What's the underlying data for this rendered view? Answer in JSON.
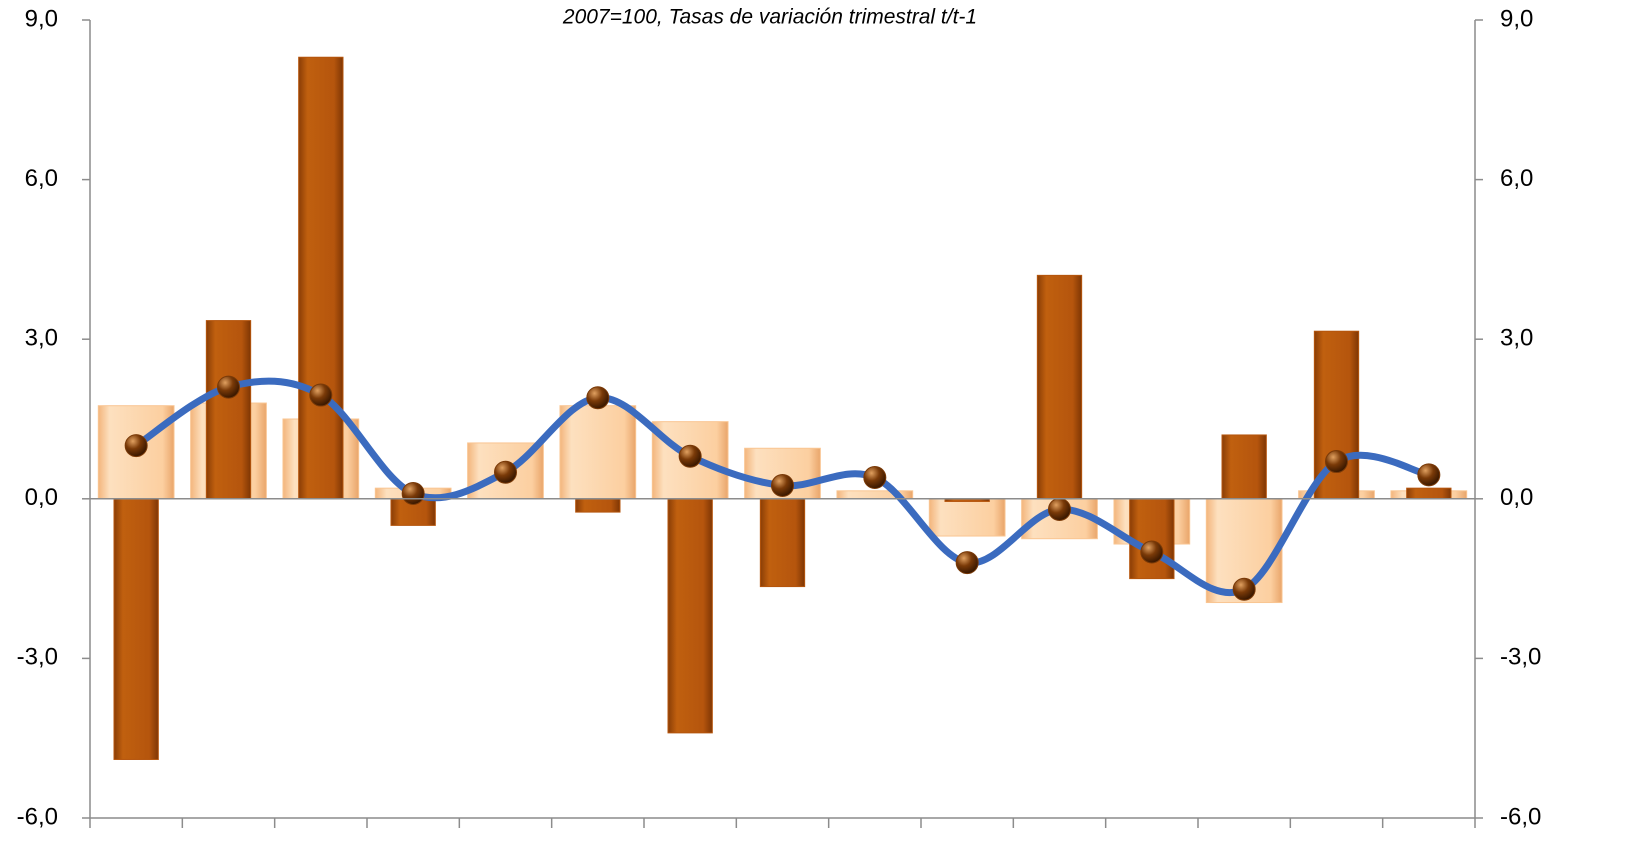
{
  "chart_data": {
    "type": "bar",
    "subtitle": "2007=100, Tasas de variación trimestral t/t-1",
    "categories": [
      null,
      null,
      null,
      null,
      null,
      null,
      null,
      null,
      null,
      null,
      null,
      null,
      null,
      null,
      null
    ],
    "series": [
      {
        "type": "bar",
        "color": "#f9c592",
        "values": [
          1.75,
          1.8,
          1.5,
          0.2,
          1.05,
          1.75,
          1.45,
          0.95,
          0.15,
          -0.7,
          -0.75,
          -0.85,
          -1.95,
          0.15,
          0.15
        ]
      },
      {
        "type": "bar",
        "color": "#b5550d",
        "values": [
          -4.9,
          3.35,
          8.3,
          -0.5,
          0,
          -0.25,
          -4.4,
          -1.65,
          0,
          -0.05,
          4.2,
          -1.5,
          1.2,
          3.15,
          0.2
        ]
      },
      {
        "type": "line",
        "color": "#3b6bbf",
        "marker_color": "#7a3a08",
        "values": [
          1.0,
          2.1,
          1.95,
          0.1,
          0.5,
          1.9,
          0.8,
          0.25,
          0.4,
          -1.2,
          -0.2,
          -1.0,
          -1.7,
          0.7,
          0.45
        ]
      }
    ],
    "ylim": [
      -6,
      9
    ],
    "yticks": [
      {
        "value": -6,
        "label": "-6,0"
      },
      {
        "value": -3,
        "label": "-3,0"
      },
      {
        "value": 0,
        "label": "0,0"
      },
      {
        "value": 3,
        "label": "3,0"
      },
      {
        "value": 6,
        "label": "6,0"
      },
      {
        "value": 9,
        "label": "9,0"
      }
    ],
    "y2lim": [
      -6,
      9
    ],
    "y2ticks": [
      {
        "value": -6,
        "label": "-6,0"
      },
      {
        "value": -3,
        "label": "-3,0"
      },
      {
        "value": 0,
        "label": "0,0"
      },
      {
        "value": 3,
        "label": "3,0"
      },
      {
        "value": 6,
        "label": "6,0"
      },
      {
        "value": 9,
        "label": "9,0"
      }
    ]
  }
}
